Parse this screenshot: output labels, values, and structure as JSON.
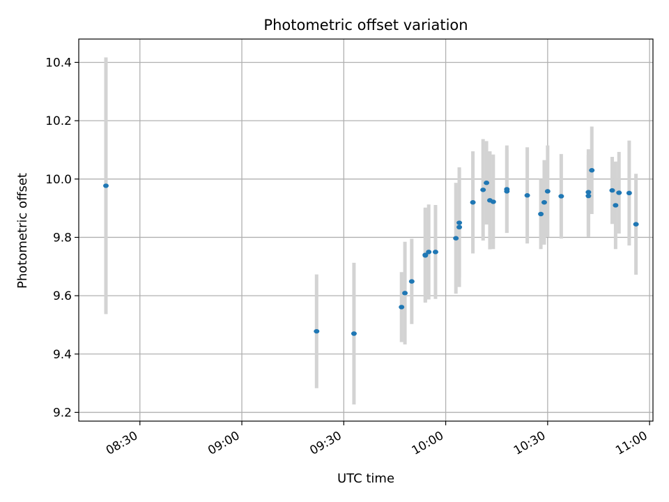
{
  "chart_data": {
    "type": "scatter",
    "title": "Photometric offset variation",
    "xlabel": "UTC time",
    "ylabel": "Photometric offset",
    "x_tick_labels": [
      "08:30",
      "09:00",
      "09:30",
      "10:00",
      "10:30",
      "11:00"
    ],
    "y_tick_labels": [
      "9.2",
      "9.4",
      "9.6",
      "9.8",
      "10.0",
      "10.2",
      "10.4"
    ],
    "ylim": [
      9.17,
      10.48
    ],
    "xlim": [
      "08:12",
      "11:01"
    ],
    "grid": true,
    "colors": {
      "point": "#1f77b4",
      "errorbar": "#d3d3d3",
      "grid": "#b0b0b0"
    },
    "series": [
      {
        "points": [
          {
            "x": "08:20",
            "y": 9.977,
            "err": 0.44
          },
          {
            "x": "09:22",
            "y": 9.478,
            "err": 0.195
          },
          {
            "x": "09:33",
            "y": 9.47,
            "err": 0.243
          },
          {
            "x": "09:47",
            "y": 9.561,
            "err": 0.12
          },
          {
            "x": "09:48",
            "y": 9.609,
            "err": 0.176
          },
          {
            "x": "09:50",
            "y": 9.649,
            "err": 0.146
          },
          {
            "x": "09:54",
            "y": 9.738,
            "err": 0.162
          },
          {
            "x": "09:54",
            "y": 9.74,
            "err": 0.162
          },
          {
            "x": "09:55",
            "y": 9.75,
            "err": 0.163
          },
          {
            "x": "09:57",
            "y": 9.75,
            "err": 0.161
          },
          {
            "x": "10:03",
            "y": 9.797,
            "err": 0.19
          },
          {
            "x": "10:04",
            "y": 9.835,
            "err": 0.205
          },
          {
            "x": "10:04",
            "y": 9.85,
            "err": 0.187
          },
          {
            "x": "10:08",
            "y": 9.92,
            "err": 0.175
          },
          {
            "x": "10:11",
            "y": 9.963,
            "err": 0.174
          },
          {
            "x": "10:12",
            "y": 9.987,
            "err": 0.143
          },
          {
            "x": "10:13",
            "y": 9.927,
            "err": 0.168
          },
          {
            "x": "10:14",
            "y": 9.922,
            "err": 0.162
          },
          {
            "x": "10:18",
            "y": 9.958,
            "err": 0.142
          },
          {
            "x": "10:18",
            "y": 9.965,
            "err": 0.15
          },
          {
            "x": "10:24",
            "y": 9.944,
            "err": 0.165
          },
          {
            "x": "10:28",
            "y": 9.88,
            "err": 0.12
          },
          {
            "x": "10:29",
            "y": 9.92,
            "err": 0.145
          },
          {
            "x": "10:30",
            "y": 9.958,
            "err": 0.157
          },
          {
            "x": "10:34",
            "y": 9.941,
            "err": 0.145
          },
          {
            "x": "10:42",
            "y": 9.942,
            "err": 0.14
          },
          {
            "x": "10:42",
            "y": 9.955,
            "err": 0.147
          },
          {
            "x": "10:43",
            "y": 10.03,
            "err": 0.15
          },
          {
            "x": "10:49",
            "y": 9.961,
            "err": 0.115
          },
          {
            "x": "10:50",
            "y": 9.91,
            "err": 0.15
          },
          {
            "x": "10:51",
            "y": 9.953,
            "err": 0.14
          },
          {
            "x": "10:54",
            "y": 9.952,
            "err": 0.18
          },
          {
            "x": "10:56",
            "y": 9.845,
            "err": 0.173
          }
        ]
      }
    ]
  }
}
